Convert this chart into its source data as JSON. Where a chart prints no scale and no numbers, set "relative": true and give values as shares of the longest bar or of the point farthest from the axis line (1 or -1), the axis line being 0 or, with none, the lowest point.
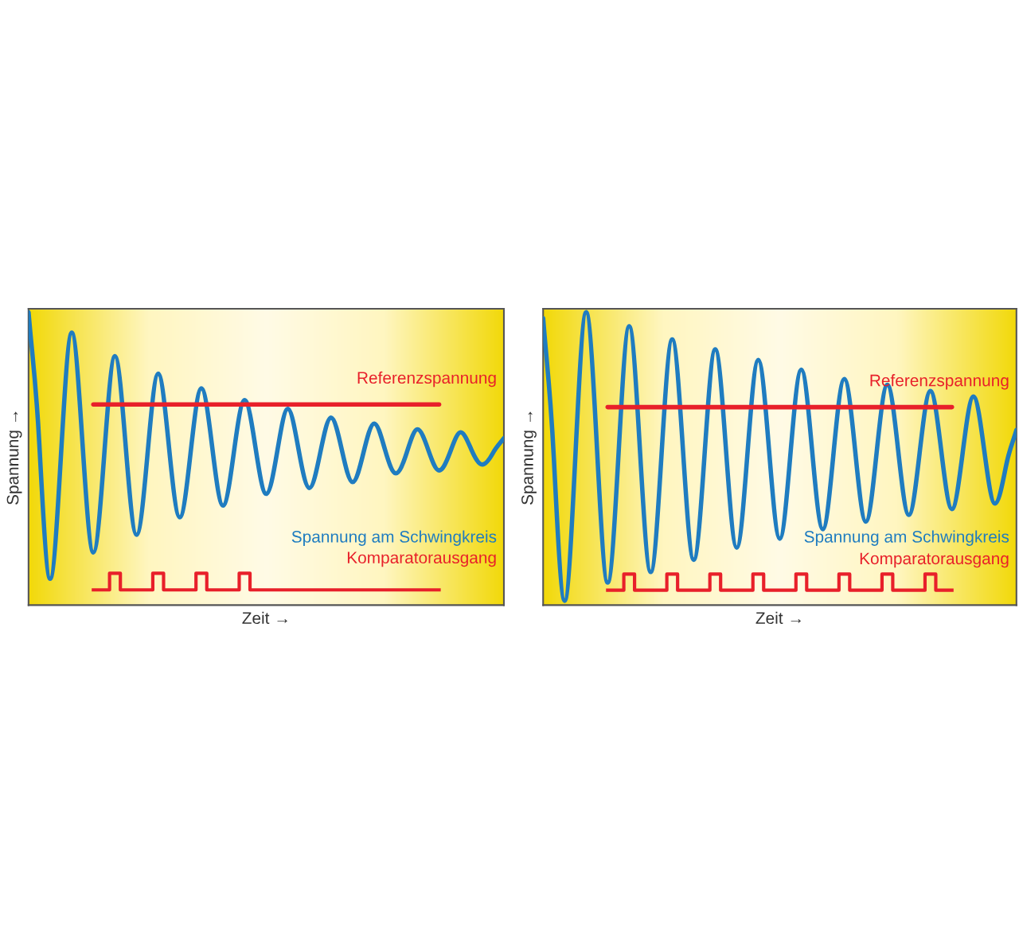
{
  "chart_data": [
    {
      "type": "line",
      "relative": true,
      "xlabel": "Zeit →",
      "ylabel": "Spannung →",
      "tick_labels": false,
      "grid": false,
      "legend": false,
      "categories": [
        null,
        null,
        null,
        null,
        null,
        null,
        null,
        null,
        null,
        null,
        null,
        null,
        null,
        null,
        null,
        null,
        null,
        null,
        null,
        null,
        null,
        null,
        null,
        null,
        null,
        null,
        null,
        null,
        null,
        null,
        null,
        null,
        null,
        null,
        null,
        null,
        null,
        null,
        null,
        null,
        null,
        null,
        null,
        null,
        null
      ],
      "series": [
        {
          "name": "Spannung am Schwingkreis",
          "color": "#1f7cc0",
          "values": [
            1.0,
            0.55,
            0.09,
            0.51,
            0.93,
            0.55,
            0.18,
            0.51,
            0.85,
            0.54,
            0.24,
            0.51,
            0.79,
            0.54,
            0.3,
            0.52,
            0.74,
            0.54,
            0.34,
            0.52,
            0.7,
            0.54,
            0.38,
            0.52,
            0.67,
            0.53,
            0.4,
            0.52,
            0.64,
            0.53,
            0.42,
            0.52,
            0.62,
            0.53,
            0.45,
            0.52,
            0.6,
            0.53,
            0.46,
            0.52,
            0.59,
            0.53,
            0.48,
            0.52,
            0.57
          ]
        },
        {
          "name": "Referenzspannung",
          "type": "line",
          "color": "#e8202a",
          "values": [
            null,
            null,
            null,
            null,
            null,
            null,
            0.685,
            0.685,
            0.685,
            0.685,
            0.685,
            0.685,
            0.685,
            0.685,
            0.685,
            0.685,
            0.685,
            0.685,
            0.685,
            0.685,
            0.685,
            0.685,
            0.685,
            0.685,
            0.685,
            0.685,
            0.685,
            0.685,
            0.685,
            0.685,
            0.685,
            0.685,
            0.685,
            0.685,
            0.685,
            0.685,
            0.685,
            0.685,
            0.685,
            null,
            null,
            null,
            null,
            null,
            null
          ]
        },
        {
          "name": "Komparatorausgang",
          "type": "step",
          "color": "#e8202a",
          "values": [
            null,
            null,
            null,
            null,
            null,
            null,
            0.052,
            0.052,
            0.109,
            0.052,
            0.052,
            0.052,
            0.109,
            0.052,
            0.052,
            0.052,
            0.109,
            0.052,
            0.052,
            0.052,
            0.109,
            0.052,
            0.052,
            0.052,
            0.052,
            0.052,
            0.052,
            0.052,
            0.052,
            0.052,
            0.052,
            0.052,
            0.052,
            0.052,
            0.052,
            0.052,
            0.052,
            0.052,
            0.052,
            null,
            null,
            null,
            null,
            null,
            null
          ]
        }
      ]
    },
    {
      "type": "line",
      "relative": true,
      "xlabel": "Zeit →",
      "ylabel": "Spannung →",
      "tick_labels": false,
      "grid": false,
      "legend": false,
      "categories": [
        null,
        null,
        null,
        null,
        null,
        null,
        null,
        null,
        null,
        null,
        null,
        null,
        null,
        null,
        null,
        null,
        null,
        null,
        null,
        null,
        null,
        null,
        null,
        null,
        null,
        null,
        null,
        null,
        null,
        null,
        null,
        null,
        null,
        null,
        null,
        null,
        null,
        null,
        null,
        null,
        null,
        null,
        null,
        null,
        null
      ],
      "series": [
        {
          "name": "Spannung am Schwingkreis",
          "color": "#1f7cc0",
          "values": [
            0.98,
            0.5,
            0.015,
            0.51,
            1.0,
            0.54,
            0.077,
            0.51,
            0.952,
            0.53,
            0.113,
            0.51,
            0.907,
            0.53,
            0.155,
            0.51,
            0.873,
            0.53,
            0.196,
            0.52,
            0.837,
            0.53,
            0.227,
            0.52,
            0.804,
            0.53,
            0.259,
            0.52,
            0.772,
            0.53,
            0.285,
            0.52,
            0.752,
            0.53,
            0.308,
            0.52,
            0.731,
            0.53,
            0.328,
            0.52,
            0.712,
            0.53,
            0.347,
            0.47,
            0.598
          ]
        },
        {
          "name": "Referenzspannung",
          "type": "line",
          "color": "#e8202a",
          "values": [
            null,
            null,
            null,
            null,
            null,
            null,
            0.676,
            0.676,
            0.676,
            0.676,
            0.676,
            0.676,
            0.676,
            0.676,
            0.676,
            0.676,
            0.676,
            0.676,
            0.676,
            0.676,
            0.676,
            0.676,
            0.676,
            0.676,
            0.676,
            0.676,
            0.676,
            0.676,
            0.676,
            0.676,
            0.676,
            0.676,
            0.676,
            0.676,
            0.676,
            0.676,
            0.676,
            0.676,
            0.676,
            null,
            null,
            null,
            null,
            null,
            null
          ]
        },
        {
          "name": "Komparatorausgang",
          "type": "step",
          "color": "#e8202a",
          "values": [
            null,
            null,
            null,
            null,
            null,
            null,
            0.051,
            0.051,
            0.106,
            0.051,
            0.051,
            0.051,
            0.106,
            0.051,
            0.051,
            0.051,
            0.106,
            0.051,
            0.051,
            0.051,
            0.106,
            0.051,
            0.051,
            0.051,
            0.106,
            0.051,
            0.051,
            0.051,
            0.106,
            0.051,
            0.051,
            0.051,
            0.106,
            0.051,
            0.051,
            0.051,
            0.106,
            0.051,
            0.051,
            null,
            null,
            null,
            null,
            null,
            null
          ]
        }
      ]
    }
  ]
}
